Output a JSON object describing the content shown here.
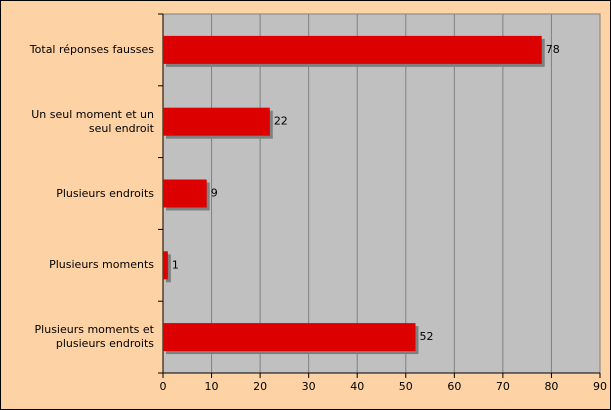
{
  "chart_data": {
    "type": "barh",
    "categories": [
      "Total réponses fausses",
      "Un seul moment et un seul endroit",
      "Plusieurs endroits",
      "Plusieurs moments",
      "Plusieurs moments et plusieurs endroits"
    ],
    "values": [
      78,
      22,
      9,
      1,
      52
    ],
    "color": "#dd0000",
    "xlim": [
      0,
      90
    ],
    "xticks": [
      0,
      10,
      20,
      30,
      40,
      50,
      60,
      70,
      80,
      90
    ],
    "grid": true
  }
}
